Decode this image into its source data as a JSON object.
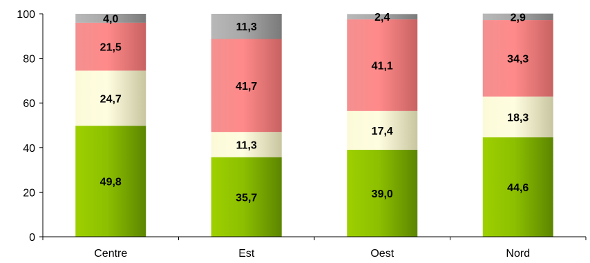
{
  "chart_data": {
    "type": "bar",
    "stacked": true,
    "categories": [
      "Centre",
      "Est",
      "Oest",
      "Nord"
    ],
    "series": [
      {
        "color": "#7fb000",
        "values": [
          49.8,
          35.7,
          39.0,
          44.6
        ],
        "labels": [
          "49,8",
          "35,7",
          "39,0",
          "44,6"
        ]
      },
      {
        "color": "#f2f0c4",
        "values": [
          24.7,
          11.3,
          17.4,
          18.3
        ],
        "labels": [
          "24,7",
          "11,3",
          "17,4",
          "18,3"
        ]
      },
      {
        "color": "#f47e7e",
        "values": [
          21.5,
          41.7,
          41.1,
          34.3
        ],
        "labels": [
          "21,5",
          "41,7",
          "41,1",
          "34,3"
        ]
      },
      {
        "color": "#9a9a9a",
        "values": [
          4.0,
          11.3,
          2.4,
          2.9
        ],
        "labels": [
          "4,0",
          "11,3",
          "2,4",
          "2,9"
        ]
      }
    ],
    "yticks": [
      "0",
      "20",
      "40",
      "60",
      "80",
      "100"
    ],
    "ylim": [
      0,
      100
    ],
    "grid": false,
    "legend": false
  }
}
